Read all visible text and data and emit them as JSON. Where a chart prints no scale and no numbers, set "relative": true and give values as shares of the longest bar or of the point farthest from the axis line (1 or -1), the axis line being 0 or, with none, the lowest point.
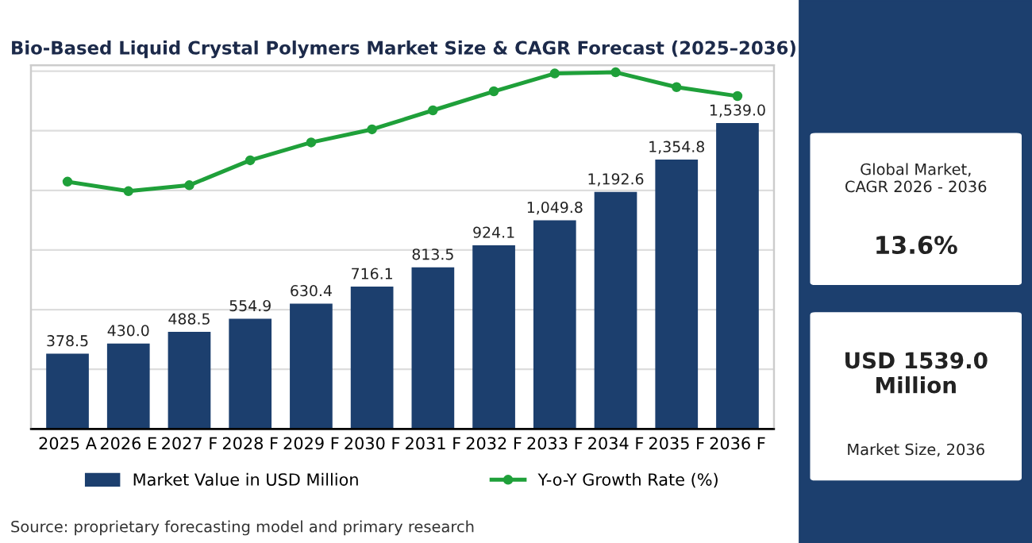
{
  "chart_data": [
    {
      "type": "bar",
      "title": "Bio-Based Liquid Crystal Polymers Market Size & CAGR Forecast (2025–2036)",
      "categories": [
        "2025 A",
        "2026 E",
        "2027 F",
        "2028 F",
        "2029 F",
        "2030 F",
        "2031 F",
        "2032 F",
        "2033 F",
        "2034 F",
        "2035 F",
        "2036 F"
      ],
      "series": [
        {
          "name": "Market Value in USD Million",
          "color": "#1c3f6e",
          "values": [
            378.5,
            430.0,
            488.5,
            554.9,
            630.4,
            716.1,
            813.5,
            924.1,
            1049.8,
            1192.6,
            1354.8,
            1539.0
          ],
          "value_labels": [
            "378.5",
            "430.0",
            "488.5",
            "554.9",
            "630.4",
            "716.1",
            "813.5",
            "924.1",
            "1,049.8",
            "1,192.6",
            "1,354.8",
            "1,539.0"
          ]
        }
      ],
      "ylim": [
        0,
        1830
      ],
      "yticks": [
        {
          "value": 0,
          "label": null
        },
        {
          "value": 300,
          "label": null
        },
        {
          "value": 600,
          "label": null
        },
        {
          "value": 900,
          "label": null
        },
        {
          "value": 1200,
          "label": null
        },
        {
          "value": 1500,
          "label": null
        },
        {
          "value": 1800,
          "label": null
        }
      ],
      "grid": "y",
      "legend": "bottom",
      "tick_labels": "x",
      "annotations": [
        "Source: proprietary forecasting model and primary research"
      ]
    },
    {
      "type": "line",
      "relative": true,
      "categories": [
        null,
        null,
        null,
        null,
        null,
        null,
        null,
        null,
        null,
        null,
        null,
        null
      ],
      "marker": "circle",
      "series": [
        {
          "name": "Y-o-Y Growth Rate (%)",
          "color": "#1fa03a",
          "values": [
            0.08,
            0,
            0.05,
            0.26,
            0.41,
            0.52,
            0.68,
            0.84,
            0.99,
            1,
            0.875,
            0.8
          ]
        }
      ]
    },
    {
      "type": "other",
      "annotations": [
        "Global Market,\nCAGR 2026 - 2036",
        "13.6%",
        "USD 1539.0\nMillion",
        "Market Size, 2036"
      ]
    }
  ]
}
